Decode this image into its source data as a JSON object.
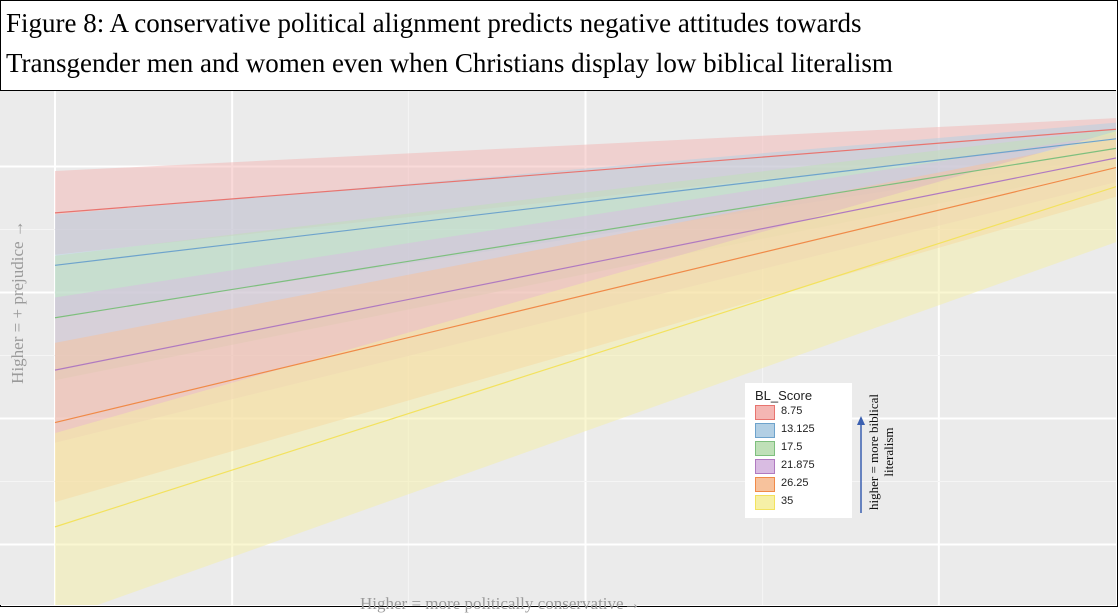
{
  "figure": {
    "title_line_1": "Figure 8: A conservative political alignment predicts negative attitudes towards",
    "title_line_2": "Transgender men and women even when Christians display low biblical literalism"
  },
  "chart_data": {
    "type": "line",
    "title": "Figure 8: A conservative political alignment predicts negative attitudes towards Transgender men and women even when Christians display low biblical literalism",
    "xlabel": "Higher = more politically conservative→",
    "ylabel": "Higher = + prejudice →",
    "x_range": [
      0,
      1
    ],
    "y_range": [
      0,
      1
    ],
    "grid": true,
    "legend": {
      "title": "BL_Score",
      "placement": "center-right",
      "note": "higher = more biblical literalism"
    },
    "series": [
      {
        "name": "8.75",
        "color": "#e8746f",
        "fill": "#f4b6b3",
        "x": [
          0,
          1
        ],
        "y": [
          0.778,
          0.944
        ],
        "lower": [
          0.695,
          0.919
        ],
        "upper": [
          0.861,
          0.966
        ]
      },
      {
        "name": "13.125",
        "color": "#6ea3cc",
        "fill": "#b2cfe4",
        "x": [
          0,
          1
        ],
        "y": [
          0.674,
          0.925
        ],
        "lower": [
          0.572,
          0.89
        ],
        "upper": [
          0.775,
          0.957
        ]
      },
      {
        "name": "17.5",
        "color": "#7ebf7e",
        "fill": "#bfe0b8",
        "x": [
          0,
          1
        ],
        "y": [
          0.57,
          0.906
        ],
        "lower": [
          0.446,
          0.867
        ],
        "upper": [
          0.693,
          0.944
        ]
      },
      {
        "name": "21.875",
        "color": "#b07ac0",
        "fill": "#d9bce2",
        "x": [
          0,
          1
        ],
        "y": [
          0.466,
          0.887
        ],
        "lower": [
          0.322,
          0.839
        ],
        "upper": [
          0.61,
          0.934
        ]
      },
      {
        "name": "26.25",
        "color": "#f08a48",
        "fill": "#f7c29c",
        "x": [
          0,
          1
        ],
        "y": [
          0.362,
          0.868
        ],
        "lower": [
          0.204,
          0.81
        ],
        "upper": [
          0.52,
          0.926
        ]
      },
      {
        "name": "35",
        "color": "#f3e25e",
        "fill": "#f6f0a6",
        "x": [
          0,
          1
        ],
        "y": [
          0.155,
          0.83
        ],
        "lower": [
          -0.03,
          0.72
        ],
        "upper": [
          0.341,
          0.94
        ]
      }
    ]
  }
}
